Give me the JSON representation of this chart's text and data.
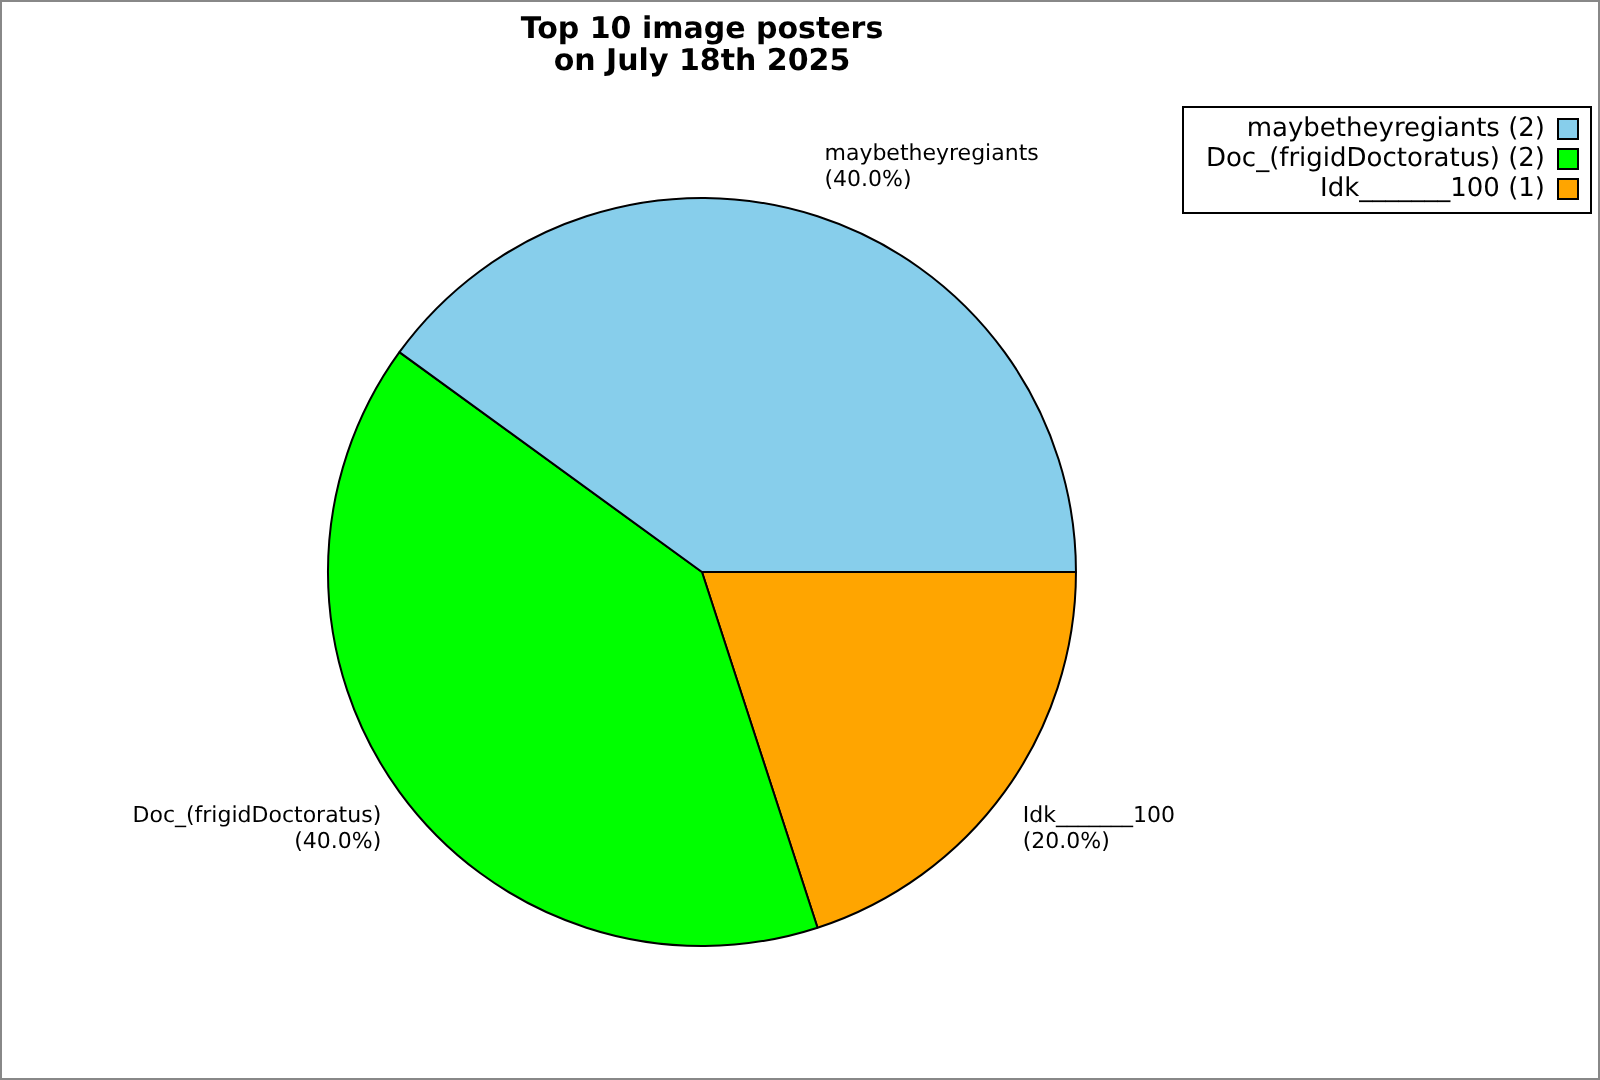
{
  "chart_data": {
    "type": "pie",
    "title": "Top 10 image posters\non July 18th 2025",
    "categories": [
      "maybetheyregiants (2)",
      "Doc_(frigidDoctoratus) (2)",
      "Idk_______100 (1)"
    ],
    "values": [
      40,
      40,
      20
    ],
    "colors": [
      "#87ceeb",
      "#00ff00",
      "#ffa500"
    ],
    "value_labels": [
      "maybetheyregiants\n(40.0%)",
      "Doc_(frigidDoctoratus)\n(40.0%)",
      "Idk_______100\n(20.0%)"
    ],
    "legend": "top right"
  }
}
